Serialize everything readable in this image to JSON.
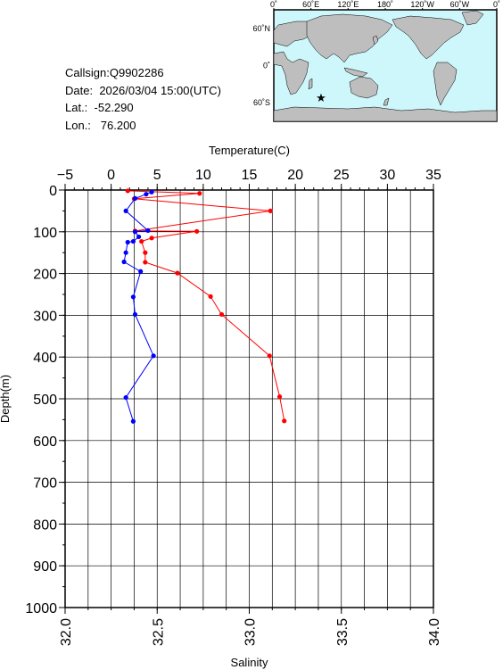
{
  "info": {
    "callsign_label": "Callsign:",
    "callsign": "Q9902286",
    "date_label": "Date:",
    "date": "2026/03/04 15:00(UTC)",
    "lat_label": "Lat.:",
    "lat": "-52.290",
    "lon_label": "Lon.:",
    "lon": "76.200"
  },
  "map": {
    "top_labels": [
      "0˚",
      "60˚E",
      "120˚E",
      "180˚",
      "120˚W",
      "60˚W",
      "0˚"
    ],
    "lat_labels": [
      "60˚N",
      "0˚",
      "60˚S"
    ],
    "station": {
      "lon": 76.2,
      "lat": -52.29
    },
    "colors": {
      "ocean": "#cdf7fb",
      "land": "#bebebe",
      "marker": "#ff0000"
    }
  },
  "chart_data": {
    "type": "line",
    "top_axis": {
      "label": "Temperature(C)",
      "range": [
        -5,
        35
      ],
      "ticks": [
        "−5",
        "0",
        "5",
        "10",
        "15",
        "20",
        "25",
        "30",
        "35"
      ]
    },
    "bottom_axis": {
      "label": "Salinity",
      "range": [
        32.0,
        34.0
      ],
      "ticks": [
        "32.0",
        "32.5",
        "33.0",
        "33.5",
        "34.0"
      ]
    },
    "y_axis": {
      "label": "Depth(m)",
      "range": [
        0,
        1000
      ],
      "inverted": true,
      "ticks": [
        "0",
        "100",
        "200",
        "300",
        "400",
        "500",
        "600",
        "700",
        "800",
        "900",
        "1000"
      ]
    },
    "grid": true,
    "series": [
      {
        "quantity": "temperature",
        "color": "#ff0000",
        "points": [
          [
            1.8,
            2
          ],
          [
            9.6,
            8
          ],
          [
            2.5,
            21
          ],
          [
            17.3,
            50
          ],
          [
            2.6,
            98
          ],
          [
            9.3,
            99
          ],
          [
            4.4,
            115
          ],
          [
            3.3,
            123
          ],
          [
            3.7,
            150
          ],
          [
            3.7,
            173
          ],
          [
            7.2,
            199
          ],
          [
            10.8,
            255
          ],
          [
            12.0,
            298
          ],
          [
            17.2,
            397
          ],
          [
            18.3,
            495
          ],
          [
            18.8,
            553
          ]
        ]
      },
      {
        "quantity": "salinity",
        "color": "#0000ff",
        "points": [
          [
            32.47,
            5
          ],
          [
            32.44,
            10
          ],
          [
            32.38,
            20
          ],
          [
            32.33,
            50
          ],
          [
            32.45,
            97
          ],
          [
            32.38,
            100
          ],
          [
            32.4,
            112
          ],
          [
            32.37,
            123
          ],
          [
            32.34,
            125
          ],
          [
            32.33,
            150
          ],
          [
            32.32,
            172
          ],
          [
            32.41,
            195
          ],
          [
            32.37,
            256
          ],
          [
            32.38,
            298
          ],
          [
            32.48,
            397
          ],
          [
            32.33,
            497
          ],
          [
            32.37,
            554
          ]
        ]
      }
    ]
  }
}
